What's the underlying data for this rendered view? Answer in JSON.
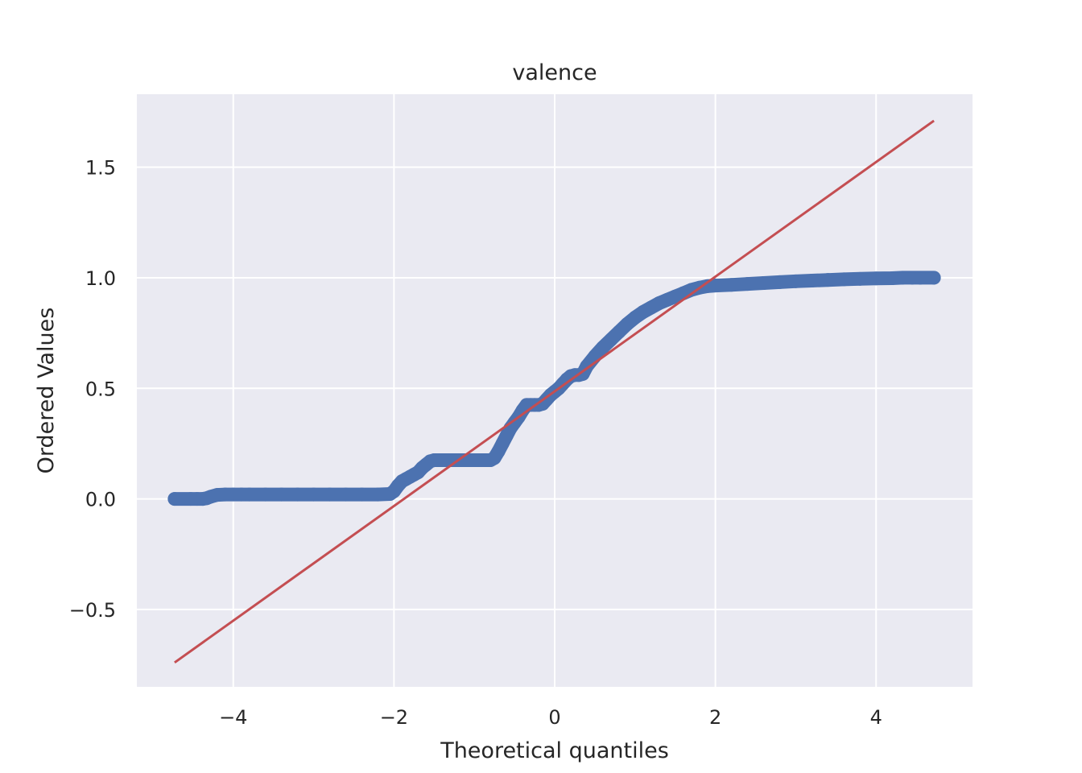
{
  "chart_data": {
    "type": "scatter",
    "title": "valence",
    "xlabel": "Theoretical quantiles",
    "ylabel": "Ordered Values",
    "xlim": [
      -5.2,
      5.2
    ],
    "ylim": [
      -0.85,
      1.83
    ],
    "xticks": [
      -4,
      -2,
      0,
      2,
      4
    ],
    "yticks": [
      -0.5,
      0.0,
      0.5,
      1.0,
      1.5
    ],
    "xtick_labels": [
      "−4",
      "−2",
      "0",
      "2",
      "4"
    ],
    "ytick_labels": [
      "−0.5",
      "0.0",
      "0.5",
      "1.0",
      "1.5"
    ],
    "grid": true,
    "background": "#eaeaf2",
    "series": [
      {
        "kind": "points",
        "color": "#4c72b0",
        "x": [
          -4.73,
          -4.53,
          -4.45,
          -4.38,
          -4.33,
          -4.28,
          -4.2,
          -4.1,
          -4.0,
          -3.9,
          -3.8,
          -3.6,
          -3.4,
          -3.2,
          -3.0,
          -2.8,
          -2.6,
          -2.4,
          -2.2,
          -2.05,
          -2.0,
          -1.95,
          -1.9,
          -1.85,
          -1.8,
          -1.75,
          -1.7,
          -1.65,
          -1.6,
          -1.55,
          -1.5,
          -1.45,
          -1.4,
          -1.3,
          -1.2,
          -1.1,
          -1.0,
          -0.9,
          -0.8,
          -0.75,
          -0.7,
          -0.65,
          -0.6,
          -0.55,
          -0.5,
          -0.45,
          -0.4,
          -0.35,
          -0.3,
          -0.25,
          -0.2,
          -0.15,
          -0.1,
          -0.05,
          0.0,
          0.05,
          0.1,
          0.15,
          0.2,
          0.25,
          0.3,
          0.35,
          0.4,
          0.5,
          0.6,
          0.7,
          0.8,
          0.9,
          1.0,
          1.1,
          1.2,
          1.3,
          1.4,
          1.5,
          1.6,
          1.7,
          1.8,
          1.9,
          2.0,
          2.2,
          2.4,
          2.6,
          2.8,
          3.0,
          3.2,
          3.4,
          3.6,
          3.8,
          4.0,
          4.2,
          4.33,
          4.45,
          4.55,
          4.72
        ],
        "y": [
          0.0,
          0.0,
          0.0,
          0.0,
          0.003,
          0.01,
          0.018,
          0.02,
          0.02,
          0.02,
          0.02,
          0.02,
          0.02,
          0.02,
          0.02,
          0.02,
          0.02,
          0.02,
          0.02,
          0.022,
          0.035,
          0.06,
          0.08,
          0.09,
          0.1,
          0.11,
          0.12,
          0.14,
          0.155,
          0.17,
          0.175,
          0.175,
          0.175,
          0.175,
          0.175,
          0.175,
          0.175,
          0.175,
          0.175,
          0.185,
          0.215,
          0.25,
          0.285,
          0.32,
          0.345,
          0.37,
          0.4,
          0.425,
          0.425,
          0.425,
          0.425,
          0.43,
          0.45,
          0.47,
          0.485,
          0.5,
          0.52,
          0.54,
          0.555,
          0.56,
          0.56,
          0.565,
          0.6,
          0.645,
          0.685,
          0.72,
          0.755,
          0.79,
          0.82,
          0.845,
          0.865,
          0.885,
          0.9,
          0.915,
          0.93,
          0.945,
          0.955,
          0.962,
          0.965,
          0.968,
          0.972,
          0.976,
          0.98,
          0.984,
          0.987,
          0.99,
          0.993,
          0.995,
          0.997,
          0.998,
          1.0,
          1.0,
          1.0,
          1.0
        ]
      },
      {
        "kind": "line",
        "color": "#c44e52",
        "x": [
          -4.73,
          4.72
        ],
        "y": [
          -0.74,
          1.71
        ]
      }
    ]
  }
}
